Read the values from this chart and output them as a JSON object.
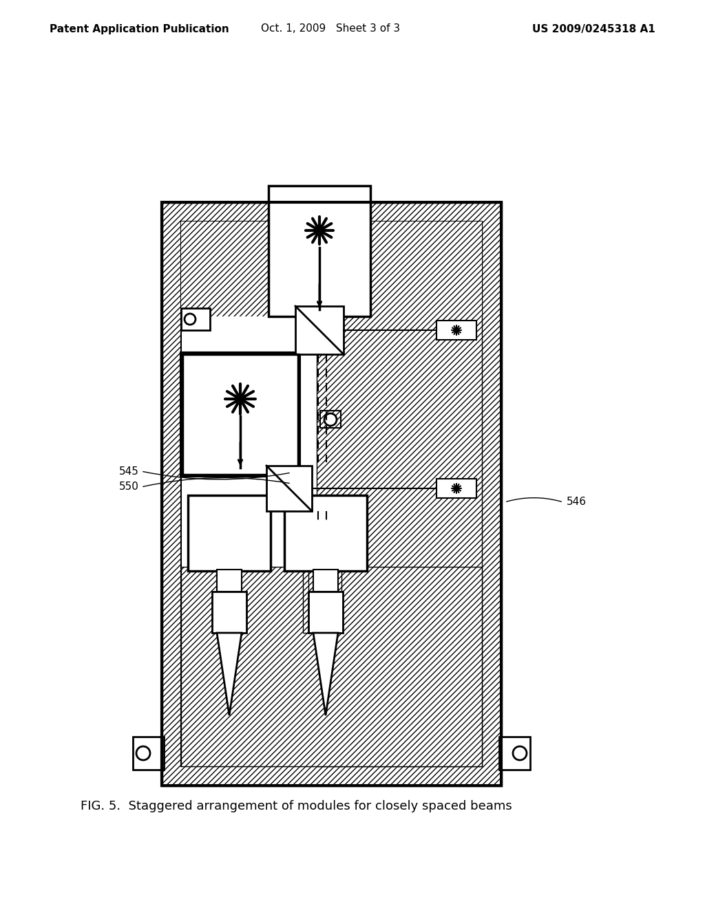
{
  "bg_color": "#ffffff",
  "header_left": "Patent Application Publication",
  "header_mid": "Oct. 1, 2009   Sheet 3 of 3",
  "header_right": "US 2009/0245318 A1",
  "header_fontsize": 11,
  "caption": "FIG. 5.  Staggered arrangement of modules for closely spaced beams",
  "caption_fontsize": 13,
  "label_545": "545",
  "label_550": "550",
  "label_546": "546"
}
